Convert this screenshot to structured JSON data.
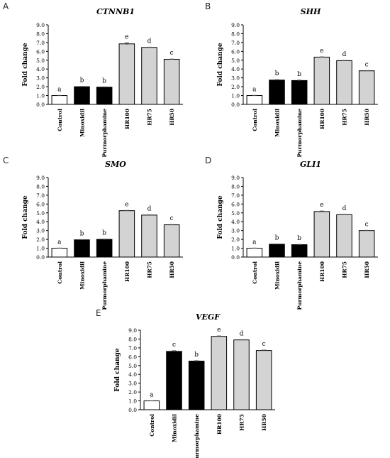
{
  "colors": {
    "control": "#ffffff",
    "drug": "#000000",
    "hr": "#d3d3d3",
    "axis": "#000000"
  },
  "chart_data": [
    {
      "panel": "A",
      "type": "bar",
      "title": "CTNNB1",
      "ylabel": "Fold change",
      "xlabel": "",
      "ylim": [
        0,
        9
      ],
      "yticks": [
        "0.0",
        "1.0",
        "2.0",
        "3.0",
        "4.0",
        "5.0",
        "6.0",
        "7.0",
        "8.0",
        "9.0"
      ],
      "categories": [
        "Control",
        "Minoxidil",
        "Purmorphamine",
        "HR100",
        "HR75",
        "HR50"
      ],
      "values": [
        1.0,
        2.0,
        1.95,
        6.85,
        6.45,
        5.1
      ],
      "errors": [
        0.02,
        0.03,
        0.03,
        0.12,
        0.03,
        0.03
      ],
      "letters": [
        "a",
        "b",
        "b",
        "e",
        "d",
        "c"
      ],
      "groups": [
        "control",
        "drug",
        "drug",
        "hr",
        "hr",
        "hr"
      ]
    },
    {
      "panel": "B",
      "type": "bar",
      "title": "SHH",
      "ylabel": "Fold change",
      "xlabel": "",
      "ylim": [
        0,
        9
      ],
      "yticks": [
        "0.0",
        "1.0",
        "2.0",
        "3.0",
        "4.0",
        "5.0",
        "6.0",
        "7.0",
        "8.0",
        "9.0"
      ],
      "categories": [
        "Control",
        "Minoxidil",
        "Purmorphamine",
        "HR100",
        "HR75",
        "HR50"
      ],
      "values": [
        1.0,
        2.75,
        2.7,
        5.35,
        4.95,
        3.8
      ],
      "errors": [
        0.02,
        0.05,
        0.05,
        0.03,
        0.03,
        0.03
      ],
      "letters": [
        "a",
        "b",
        "b",
        "e",
        "d",
        "c"
      ],
      "groups": [
        "control",
        "drug",
        "drug",
        "hr",
        "hr",
        "hr"
      ]
    },
    {
      "panel": "C",
      "type": "bar",
      "title": "SMO",
      "ylabel": "Fold change",
      "xlabel": "",
      "ylim": [
        0,
        9
      ],
      "yticks": [
        "0.0",
        "1.0",
        "2.0",
        "3.0",
        "4.0",
        "5.0",
        "6.0",
        "7.0",
        "8.0",
        "9.0"
      ],
      "categories": [
        "Control",
        "Minoxidil",
        "Purmorphamine",
        "HR100",
        "HR75",
        "HR50"
      ],
      "values": [
        1.0,
        1.95,
        2.0,
        5.25,
        4.75,
        3.65
      ],
      "errors": [
        0.02,
        0.03,
        0.03,
        0.03,
        0.03,
        0.03
      ],
      "letters": [
        "a",
        "b",
        "b",
        "e",
        "d",
        "c"
      ],
      "groups": [
        "control",
        "drug",
        "drug",
        "hr",
        "hr",
        "hr"
      ]
    },
    {
      "panel": "D",
      "type": "bar",
      "title": "GLI1",
      "ylabel": "Fold change",
      "xlabel": "",
      "ylim": [
        0,
        9
      ],
      "yticks": [
        "0.0",
        "1.0",
        "2.0",
        "3.0",
        "4.0",
        "5.0",
        "6.0",
        "7.0",
        "8.0",
        "9.0"
      ],
      "categories": [
        "Control",
        "Minoxidil",
        "Purmorphamine",
        "HR100",
        "HR75",
        "HR50"
      ],
      "values": [
        1.0,
        1.45,
        1.4,
        5.15,
        4.8,
        3.0
      ],
      "errors": [
        0.02,
        0.03,
        0.03,
        0.06,
        0.03,
        0.03
      ],
      "letters": [
        "a",
        "b",
        "b",
        "e",
        "d",
        "c"
      ],
      "groups": [
        "control",
        "drug",
        "drug",
        "hr",
        "hr",
        "hr"
      ]
    },
    {
      "panel": "E",
      "type": "bar",
      "title": "VEGF",
      "ylabel": "Fold change",
      "xlabel": "",
      "ylim": [
        0,
        9
      ],
      "yticks": [
        "0.0",
        "1.0",
        "2.0",
        "3.0",
        "4.0",
        "5.0",
        "6.0",
        "7.0",
        "8.0",
        "9.0"
      ],
      "categories": [
        "Control",
        "Minoxidil",
        "Purmorphamine",
        "HR100",
        "HR75",
        "HR50"
      ],
      "values": [
        1.0,
        6.6,
        5.5,
        8.3,
        7.9,
        6.7
      ],
      "errors": [
        0.02,
        0.08,
        0.05,
        0.05,
        0.03,
        0.05
      ],
      "letters": [
        "a",
        "c",
        "b",
        "e",
        "d",
        "c"
      ],
      "groups": [
        "control",
        "drug",
        "drug",
        "hr",
        "hr",
        "hr"
      ]
    }
  ]
}
